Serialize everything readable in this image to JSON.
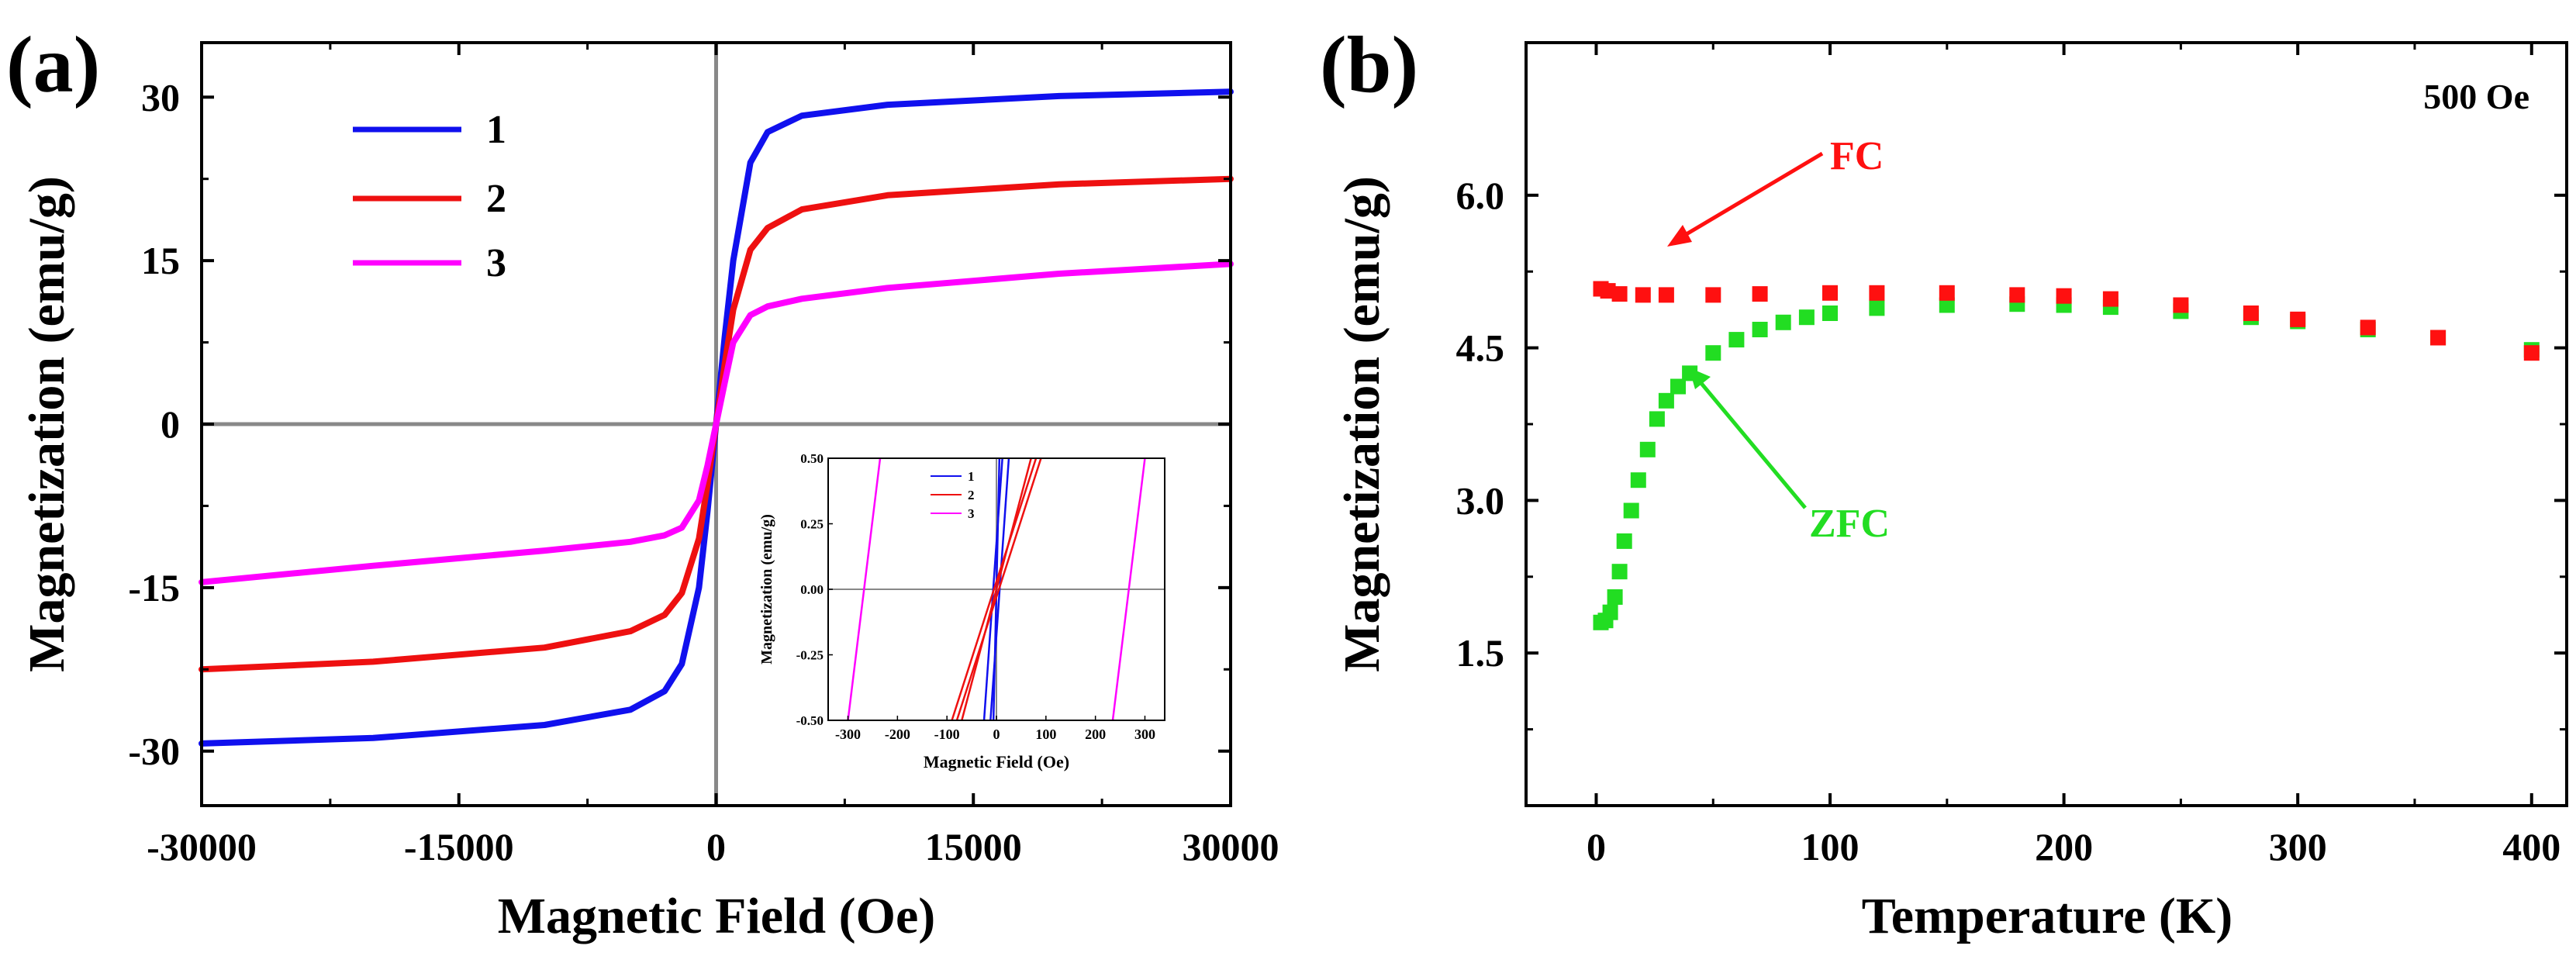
{
  "chart_data": [
    {
      "panel_label": "(a)",
      "type": "line",
      "xlabel": "Magnetic Field (Oe)",
      "ylabel": "Magnetization (emu/g)",
      "xlim": [
        -30000,
        30000
      ],
      "ylim": [
        -35,
        35
      ],
      "x_ticks": [
        -30000,
        -15000,
        0,
        15000,
        30000
      ],
      "y_ticks": [
        -30,
        -15,
        0,
        15,
        30
      ],
      "x_tick_labels": [
        "-30000",
        "-15000",
        "0",
        "15000",
        "30000"
      ],
      "y_tick_labels": [
        "-30",
        "-15",
        "0",
        "15",
        "30"
      ],
      "legend": {
        "position": "top-left",
        "entries": [
          "1",
          "2",
          "3"
        ]
      },
      "series": [
        {
          "name": "1",
          "color": "#1010ee",
          "x": [
            -30000,
            -20000,
            -10000,
            -5000,
            -3000,
            -2000,
            -1000,
            -500,
            0,
            500,
            1000,
            2000,
            3000,
            5000,
            10000,
            20000,
            30000
          ],
          "y": [
            -29.3,
            -28.8,
            -27.6,
            -26.2,
            -24.5,
            -22.0,
            -15.0,
            -8.0,
            0,
            8.0,
            15.0,
            24.0,
            26.8,
            28.3,
            29.3,
            30.1,
            30.5
          ]
        },
        {
          "name": "2",
          "color": "#ee1010",
          "x": [
            -30000,
            -20000,
            -10000,
            -5000,
            -3000,
            -2000,
            -1000,
            -500,
            0,
            500,
            1000,
            2000,
            3000,
            5000,
            10000,
            20000,
            30000
          ],
          "y": [
            -22.5,
            -21.8,
            -20.5,
            -19.0,
            -17.5,
            -15.5,
            -10.5,
            -5.5,
            0,
            5.5,
            10.5,
            16.0,
            18.0,
            19.7,
            21.0,
            22.0,
            22.5
          ]
        },
        {
          "name": "3",
          "color": "#ff00ff",
          "x": [
            -30000,
            -20000,
            -10000,
            -5000,
            -3000,
            -2000,
            -1000,
            -500,
            0,
            500,
            1000,
            2000,
            3000,
            5000,
            10000,
            20000,
            30000
          ],
          "y": [
            -14.5,
            -13.0,
            -11.6,
            -10.8,
            -10.2,
            -9.5,
            -7.0,
            -3.8,
            0,
            3.8,
            7.5,
            10.0,
            10.8,
            11.5,
            12.5,
            13.8,
            14.7
          ]
        }
      ],
      "inset": {
        "xlabel": "Magnetic Field (Oe)",
        "ylabel": "Magnetization (emu/g)",
        "xlim": [
          -340,
          340
        ],
        "ylim": [
          -0.5,
          0.5
        ],
        "x_tick_labels": [
          "-300",
          "-200",
          "-100",
          "0",
          "100",
          "200",
          "300"
        ],
        "y_tick_labels": [
          "-0.50",
          "-0.25",
          "0.00",
          "0.25",
          "0.50"
        ],
        "legend_entries": [
          "1",
          "2",
          "3"
        ],
        "series": [
          {
            "name": "1",
            "color": "#1010ee",
            "segments": [
              [
                [
                  -25,
                  -0.5
                ],
                [
                  12,
                  0.5
                ]
              ],
              [
                [
                  -12,
                  -0.5
                ],
                [
                  25,
                  0.5
                ]
              ],
              [
                [
                  -6,
                  -0.5
                ],
                [
                  6,
                  0.5
                ]
              ]
            ]
          },
          {
            "name": "2",
            "color": "#ee1010",
            "segments": [
              [
                [
                  -90,
                  -0.5
                ],
                [
                  80,
                  0.5
                ]
              ],
              [
                [
                  -80,
                  -0.5
                ],
                [
                  90,
                  0.5
                ]
              ],
              [
                [
                  -70,
                  -0.5
                ],
                [
                  70,
                  0.5
                ]
              ]
            ]
          },
          {
            "name": "3",
            "color": "#ff00ff",
            "segments": [
              [
                [
                  -300,
                  -0.5
                ],
                [
                  -235,
                  0.5
                ]
              ],
              [
                [
                  235,
                  -0.5
                ],
                [
                  300,
                  0.5
                ]
              ]
            ]
          }
        ]
      }
    },
    {
      "panel_label": "(b)",
      "type": "scatter",
      "xlabel": "Temperature (K)",
      "ylabel": "Magnetization (emu/g)",
      "xlim": [
        -30,
        415
      ],
      "ylim": [
        0,
        7.5
      ],
      "x_ticks": [
        0,
        100,
        200,
        300,
        400
      ],
      "y_ticks": [
        1.5,
        3.0,
        4.5,
        6.0
      ],
      "x_tick_labels": [
        "0",
        "100",
        "200",
        "300",
        "400"
      ],
      "y_tick_labels": [
        "1.5",
        "3.0",
        "4.5",
        "6.0"
      ],
      "field_label": "500 Oe",
      "annotations": [
        {
          "text": "FC",
          "color": "#ff1010"
        },
        {
          "text": "ZFC",
          "color": "#22dd22"
        }
      ],
      "series": [
        {
          "name": "FC",
          "color": "#ff1010",
          "x": [
            2,
            5,
            10,
            20,
            30,
            50,
            70,
            100,
            120,
            150,
            180,
            200,
            220,
            250,
            280,
            300,
            330,
            360,
            400
          ],
          "y": [
            5.08,
            5.06,
            5.03,
            5.02,
            5.02,
            5.02,
            5.03,
            5.04,
            5.04,
            5.04,
            5.02,
            5.01,
            4.98,
            4.92,
            4.84,
            4.78,
            4.7,
            4.6,
            4.45
          ]
        },
        {
          "name": "ZFC",
          "color": "#22dd22",
          "x": [
            2,
            4,
            6,
            8,
            10,
            12,
            15,
            18,
            22,
            26,
            30,
            35,
            40,
            50,
            60,
            70,
            80,
            90,
            100,
            120,
            150,
            180,
            200,
            220,
            250,
            280,
            300,
            330,
            360,
            400
          ],
          "y": [
            1.8,
            1.82,
            1.9,
            2.05,
            2.3,
            2.6,
            2.9,
            3.2,
            3.5,
            3.8,
            3.98,
            4.12,
            4.25,
            4.45,
            4.58,
            4.68,
            4.75,
            4.8,
            4.84,
            4.89,
            4.92,
            4.93,
            4.92,
            4.9,
            4.86,
            4.8,
            4.76,
            4.68,
            4.6,
            4.48
          ]
        }
      ]
    }
  ]
}
